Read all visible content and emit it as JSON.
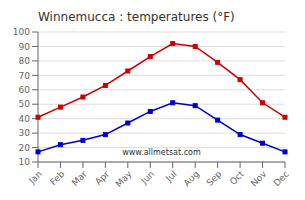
{
  "chart_data": {
    "type": "line",
    "title": "Winnemucca : temperatures (°F)",
    "categories": [
      "Jan",
      "Feb",
      "Mar",
      "Apr",
      "May",
      "Jun",
      "Jul",
      "Aug",
      "Sep",
      "Oct",
      "Nov",
      "Dec"
    ],
    "series": [
      {
        "color": "#cc0000",
        "marker": "square",
        "values": [
          41,
          48,
          55,
          63,
          73,
          83,
          92,
          90,
          79,
          67,
          51,
          41
        ]
      },
      {
        "color": "#0000cc",
        "marker": "square",
        "values": [
          17,
          22,
          25,
          29,
          37,
          45,
          51,
          49,
          39,
          29,
          23,
          17
        ]
      }
    ],
    "ylim": [
      10,
      100
    ],
    "yticks": [
      10,
      20,
      30,
      40,
      50,
      60,
      70,
      80,
      90,
      100
    ],
    "grid": "y",
    "annotations": [
      "www.allmetsat.com"
    ]
  }
}
